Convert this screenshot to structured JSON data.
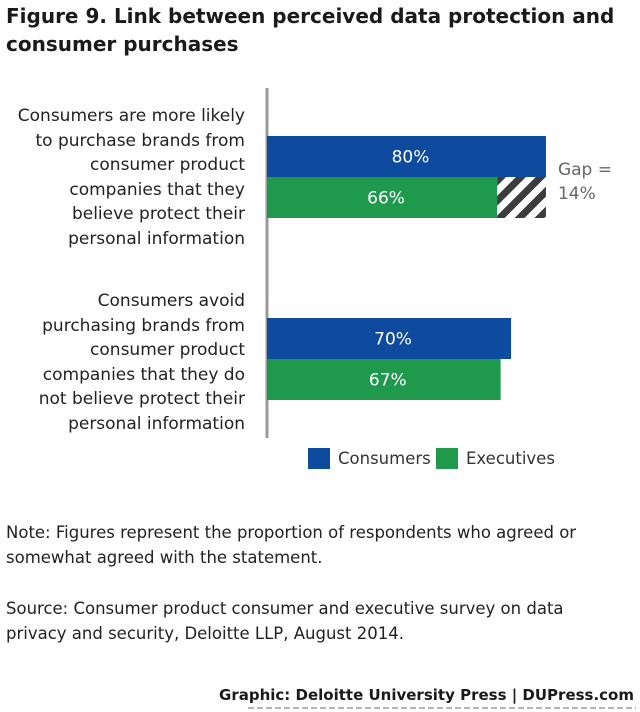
{
  "title": "Figure 9. Link between perceived data protection and consumer purchases",
  "chart_data": {
    "type": "bar",
    "orientation": "horizontal",
    "xlim": [
      0,
      100
    ],
    "categories": [
      "Consumers are more likely to purchase brands from consumer product companies that they believe protect their personal information",
      "Consumers avoid purchasing brands from consumer product companies that they do not believe protect their personal information"
    ],
    "series": [
      {
        "name": "Consumers",
        "color": "#0e4a9e",
        "values": [
          80,
          70
        ],
        "labels": [
          "80%",
          "70%"
        ]
      },
      {
        "name": "Executives",
        "color": "#1f9a4c",
        "values": [
          66,
          67
        ],
        "labels": [
          "66%",
          "67%"
        ]
      }
    ],
    "annotations": [
      {
        "text": "Gap = 14%",
        "category_index": 0,
        "from": 66,
        "to": 80
      }
    ],
    "legend_position": "bottom-right",
    "grid": false
  },
  "labels": {
    "cat0_lines": [
      "Consumers are more likely",
      "to purchase brands from",
      "consumer product",
      "companies that they",
      "believe protect their",
      "personal information"
    ],
    "cat1_lines": [
      "Consumers avoid",
      "purchasing brands from",
      "consumer product",
      "companies that they do",
      "not believe protect their",
      "personal information"
    ],
    "gap_lines": [
      "Gap =",
      "14%"
    ]
  },
  "note": "Note: Figures represent the proportion of respondents who agreed or somewhat agreed with the statement.",
  "source": "Source: Consumer product consumer and executive survey on data privacy and security, Deloitte LLP, August 2014.",
  "footer": "Graphic: Deloitte University Press | DUPress.com"
}
